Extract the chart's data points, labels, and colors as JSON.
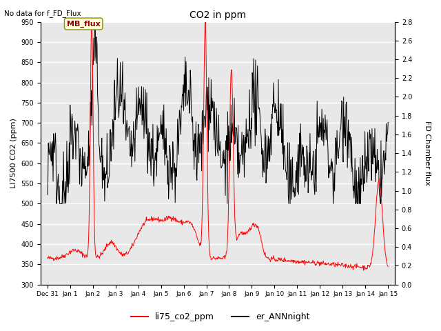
{
  "title": "CO2 in ppm",
  "top_left_text": "No data for f_FD_Flux",
  "ylabel_left": "LI7500 CO2 (ppm)",
  "ylabel_right": "FD Chamber flux",
  "ylim_left": [
    300,
    950
  ],
  "ylim_right": [
    0.0,
    2.8
  ],
  "yticks_left": [
    300,
    350,
    400,
    450,
    500,
    550,
    600,
    650,
    700,
    750,
    800,
    850,
    900,
    950
  ],
  "yticks_right": [
    0.0,
    0.2,
    0.4,
    0.6,
    0.8,
    1.0,
    1.2,
    1.4,
    1.6,
    1.8,
    2.0,
    2.2,
    2.4,
    2.6,
    2.8
  ],
  "xtick_labels": [
    "Dec 31",
    "Jan 1",
    "Jan 2",
    "Jan 3",
    "Jan 4",
    "Jan 5",
    "Jan 6",
    "Jan 7",
    "Jan 8",
    "Jan 9",
    "Jan 10",
    "Jan 11",
    "Jan 12",
    "Jan 13",
    "Jan 14",
    "Jan 15"
  ],
  "legend_labels": [
    "li75_co2_ppm",
    "er_ANNnight"
  ],
  "line1_color": "red",
  "line2_color": "black",
  "plot_bg_color": "#e8e8e8",
  "grid_color": "white",
  "annotation_text": "MB_flux",
  "seed": 42
}
